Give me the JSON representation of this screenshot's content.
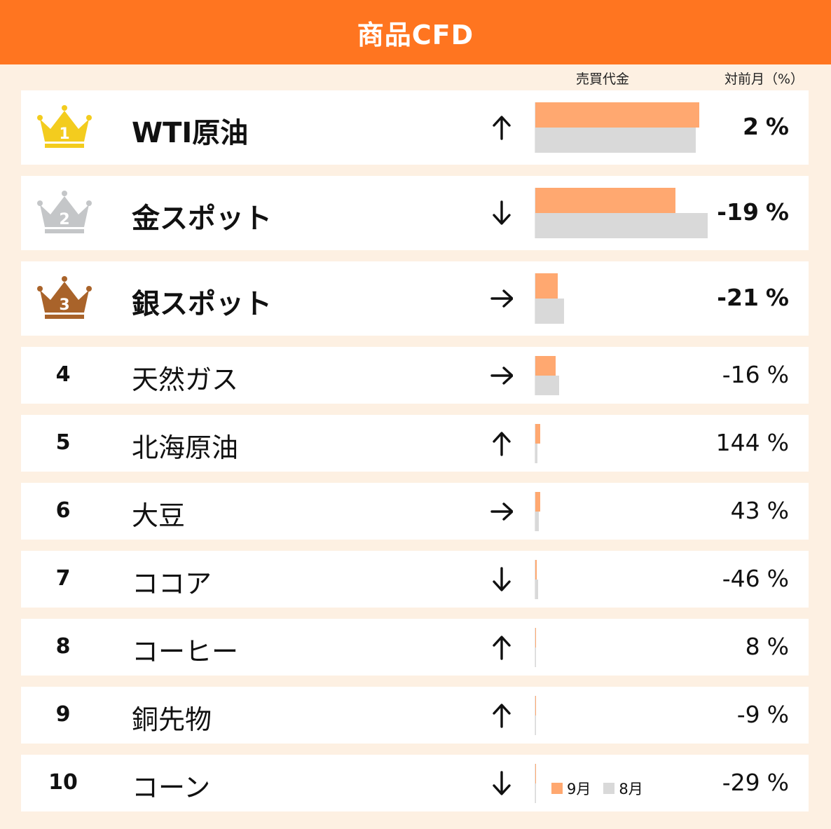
{
  "title": "商品CFD",
  "columns": {
    "volume": "売買代金",
    "change": "対前月（%）"
  },
  "legend": {
    "sep": "9月",
    "aug": "8月"
  },
  "colors": {
    "banner": "#ff7520",
    "sep": "#ffa870",
    "aug": "#d9d9d9",
    "gold": "#f3cc1e",
    "silver": "#c4c6c8",
    "bronze": "#a9632a"
  },
  "rows": [
    {
      "rank": "1",
      "name": "WTI原油",
      "trend": "up",
      "change": "2",
      "unit": "%",
      "sep": 1.0,
      "aug": 0.98
    },
    {
      "rank": "2",
      "name": "金スポット",
      "trend": "down",
      "change": "-19",
      "unit": "%",
      "sep": 0.855,
      "aug": 1.05
    },
    {
      "rank": "3",
      "name": "銀スポット",
      "trend": "right",
      "change": "-21",
      "unit": "%",
      "sep": 0.137,
      "aug": 0.175
    },
    {
      "rank": "4",
      "name": "天然ガス",
      "trend": "right",
      "change": "-16",
      "unit": "%",
      "sep": 0.124,
      "aug": 0.147
    },
    {
      "rank": "5",
      "name": "北海原油",
      "trend": "up",
      "change": "144",
      "unit": "%",
      "sep": 0.03,
      "aug": 0.012
    },
    {
      "rank": "6",
      "name": "大豆",
      "trend": "right",
      "change": "43",
      "unit": "%",
      "sep": 0.028,
      "aug": 0.02
    },
    {
      "rank": "7",
      "name": "ココア",
      "trend": "down",
      "change": "-46",
      "unit": "%",
      "sep": 0.009,
      "aug": 0.016
    },
    {
      "rank": "8",
      "name": "コーヒー",
      "trend": "up",
      "change": "8",
      "unit": "%",
      "sep": 0.006,
      "aug": 0.005
    },
    {
      "rank": "9",
      "name": "銅先物",
      "trend": "up",
      "change": "-9",
      "unit": "%",
      "sep": 0.005,
      "aug": 0.005
    },
    {
      "rank": "10",
      "name": "コーン",
      "trend": "down",
      "change": "-29",
      "unit": "%",
      "sep": 0.003,
      "aug": 0.004
    }
  ],
  "chart_data": {
    "type": "bar",
    "title": "商品CFD",
    "categories": [
      "WTI原油",
      "金スポット",
      "銀スポット",
      "天然ガス",
      "北海原油",
      "大豆",
      "ココア",
      "コーヒー",
      "銅先物",
      "コーン"
    ],
    "series": [
      {
        "name": "9月",
        "values": [
          1.0,
          0.855,
          0.137,
          0.124,
          0.03,
          0.028,
          0.009,
          0.006,
          0.005,
          0.003
        ]
      },
      {
        "name": "8月",
        "values": [
          0.98,
          1.05,
          0.175,
          0.147,
          0.012,
          0.02,
          0.016,
          0.005,
          0.005,
          0.004
        ]
      }
    ],
    "change_pct": [
      2,
      -19,
      -21,
      -16,
      144,
      43,
      -46,
      8,
      -9,
      -29
    ],
    "ylabel": "売買代金",
    "legend": "bottom"
  }
}
